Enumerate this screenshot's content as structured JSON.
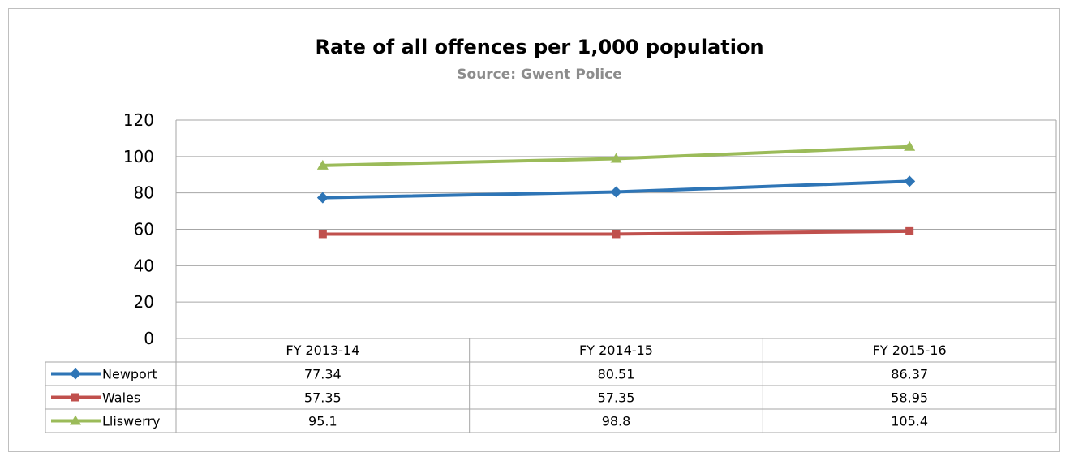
{
  "chart_data": {
    "type": "line",
    "title": "Rate of all offences per 1,000 population",
    "subtitle": "Source: Gwent Police",
    "categories": [
      "FY 2013-14",
      "FY 2014-15",
      "FY 2015-16"
    ],
    "y_ticks": [
      "0",
      "20",
      "40",
      "60",
      "80",
      "100",
      "120"
    ],
    "ylim": [
      0,
      120
    ],
    "grid": true,
    "legend": "data-table",
    "series": [
      {
        "name": "Newport",
        "values": [
          77.34,
          80.51,
          86.37
        ],
        "labels": [
          "77.34",
          "80.51",
          "86.37"
        ],
        "color": "#2e75b6",
        "marker": "diamond"
      },
      {
        "name": "Wales",
        "values": [
          57.35,
          57.35,
          58.95
        ],
        "labels": [
          "57.35",
          "57.35",
          "58.95"
        ],
        "color": "#c0504d",
        "marker": "square"
      },
      {
        "name": "Lliswerry",
        "values": [
          95.1,
          98.8,
          105.4
        ],
        "labels": [
          "95.1",
          "98.8",
          "105.4"
        ],
        "color": "#9bbb59",
        "marker": "triangle"
      }
    ]
  }
}
